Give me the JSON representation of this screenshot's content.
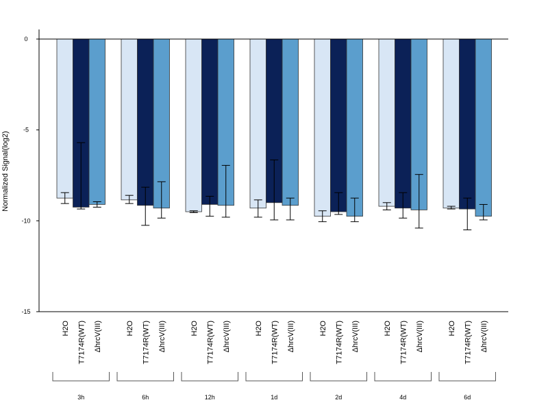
{
  "chart_data": {
    "type": "bar",
    "ylabel": "Normalized Signal(log2)",
    "ylim": [
      -15,
      0.5
    ],
    "yticks": [
      0,
      -5,
      -10,
      -15
    ],
    "grid": false,
    "legend": "none",
    "groups": [
      "3h",
      "6h",
      "12h",
      "1d",
      "2d",
      "4d",
      "6d"
    ],
    "categories": [
      "H2O",
      "T7174R(WT)",
      "ΔhrcV(III)"
    ],
    "colors": [
      "#d8e6f5",
      "#0b2157",
      "#5b9ecd"
    ],
    "values": [
      [
        -8.75,
        -9.25,
        -9.1
      ],
      [
        -8.85,
        -9.15,
        -9.3
      ],
      [
        -9.5,
        -9.1,
        -9.15
      ],
      [
        -9.3,
        -9.0,
        -9.15
      ],
      [
        -9.75,
        -9.5,
        -9.75
      ],
      [
        -9.2,
        -9.3,
        -9.4
      ],
      [
        -9.3,
        -9.35,
        -9.75
      ]
    ],
    "error_low": [
      [
        -9.05,
        -9.35,
        -9.25
      ],
      [
        -9.05,
        -10.25,
        -9.85
      ],
      [
        -9.55,
        -9.75,
        -9.8
      ],
      [
        -9.8,
        -9.95,
        -9.95
      ],
      [
        -10.05,
        -9.65,
        -10.05
      ],
      [
        -9.4,
        -9.85,
        -10.4
      ],
      [
        -9.35,
        -10.5,
        -9.95
      ]
    ],
    "error_high": [
      [
        -8.45,
        -5.7,
        -8.95
      ],
      [
        -8.6,
        -8.15,
        -7.85
      ],
      [
        -9.45,
        -8.65,
        -6.95
      ],
      [
        -8.85,
        -6.65,
        -8.75
      ],
      [
        -9.45,
        -8.45,
        -8.75
      ],
      [
        -9.0,
        -8.45,
        -7.45
      ],
      [
        -9.2,
        -8.75,
        -9.1
      ]
    ]
  }
}
